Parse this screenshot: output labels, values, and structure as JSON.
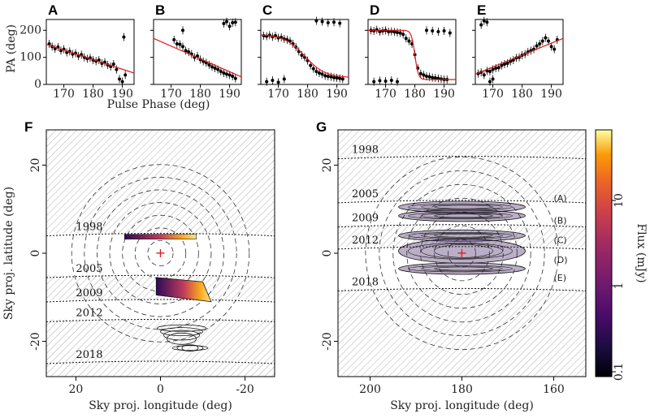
{
  "chart_data": [
    {
      "id": "A",
      "type": "scatter",
      "panel_label": "A",
      "xlim": [
        164,
        194
      ],
      "ylim": [
        0,
        240
      ],
      "xticks": [
        170,
        180,
        190
      ],
      "yticks": [
        0,
        100,
        200
      ],
      "ylabel": "PA (deg)",
      "xlabel": "Pulse Phase (deg)",
      "model": [
        [
          164,
          148
        ],
        [
          194,
          42
        ]
      ],
      "points": [
        [
          165,
          150
        ],
        [
          166,
          140
        ],
        [
          167,
          132
        ],
        [
          168,
          138
        ],
        [
          169,
          125
        ],
        [
          170,
          130
        ],
        [
          171,
          118
        ],
        [
          172,
          122
        ],
        [
          173,
          112
        ],
        [
          174,
          115
        ],
        [
          175,
          105
        ],
        [
          176,
          110
        ],
        [
          177,
          100
        ],
        [
          178,
          95
        ],
        [
          179,
          98
        ],
        [
          180,
          90
        ],
        [
          181,
          86
        ],
        [
          182,
          90
        ],
        [
          183,
          78
        ],
        [
          184,
          82
        ],
        [
          185,
          72
        ],
        [
          186,
          66
        ],
        [
          187,
          75
        ],
        [
          188,
          55
        ],
        [
          189,
          20
        ],
        [
          190,
          10
        ],
        [
          190.5,
          175
        ],
        [
          191,
          35
        ]
      ]
    },
    {
      "id": "B",
      "type": "scatter",
      "panel_label": "B",
      "xlim": [
        164,
        194
      ],
      "ylim": [
        0,
        240
      ],
      "xticks": [
        170,
        180,
        190
      ],
      "yticks": [
        0,
        100,
        200
      ],
      "model": [
        [
          164,
          170
        ],
        [
          194,
          28
        ]
      ],
      "points": [
        [
          171,
          165
        ],
        [
          172,
          150
        ],
        [
          173,
          148
        ],
        [
          174,
          140
        ],
        [
          175,
          125
        ],
        [
          176,
          120
        ],
        [
          177,
          112
        ],
        [
          178,
          100
        ],
        [
          179,
          105
        ],
        [
          180,
          92
        ],
        [
          181,
          85
        ],
        [
          182,
          80
        ],
        [
          183,
          72
        ],
        [
          184,
          65
        ],
        [
          185,
          60
        ],
        [
          186,
          55
        ],
        [
          187,
          48
        ],
        [
          188,
          42
        ],
        [
          189,
          38
        ],
        [
          190,
          35
        ],
        [
          191,
          30
        ],
        [
          192,
          22
        ],
        [
          188,
          225
        ],
        [
          189,
          232
        ],
        [
          190,
          215
        ],
        [
          191,
          228
        ],
        [
          192,
          230
        ],
        [
          174,
          200
        ]
      ]
    },
    {
      "id": "C",
      "type": "scatter",
      "panel_label": "C",
      "xlim": [
        164,
        194
      ],
      "ylim": [
        0,
        240
      ],
      "xticks": [
        170,
        180,
        190
      ],
      "yticks": [
        0,
        100,
        200
      ],
      "model_type": "sigmoid",
      "model_params": {
        "high": 185,
        "low": 25,
        "center": 179,
        "width": 3.5
      },
      "points": [
        [
          165,
          180
        ],
        [
          166,
          178
        ],
        [
          167,
          182
        ],
        [
          168,
          176
        ],
        [
          169,
          180
        ],
        [
          170,
          172
        ],
        [
          171,
          174
        ],
        [
          172,
          168
        ],
        [
          173,
          165
        ],
        [
          174,
          160
        ],
        [
          175,
          150
        ],
        [
          176,
          138
        ],
        [
          177,
          122
        ],
        [
          178,
          108
        ],
        [
          179,
          100
        ],
        [
          180,
          88
        ],
        [
          181,
          70
        ],
        [
          182,
          58
        ],
        [
          183,
          48
        ],
        [
          184,
          42
        ],
        [
          185,
          38
        ],
        [
          186,
          32
        ],
        [
          187,
          30
        ],
        [
          188,
          28
        ],
        [
          189,
          25
        ],
        [
          190,
          24
        ],
        [
          191,
          22
        ],
        [
          192,
          20
        ],
        [
          166,
          10
        ],
        [
          168,
          15
        ],
        [
          170,
          8
        ],
        [
          172,
          20
        ],
        [
          183,
          235
        ],
        [
          185,
          232
        ],
        [
          187,
          228
        ],
        [
          189,
          230
        ],
        [
          191,
          226
        ]
      ]
    },
    {
      "id": "D",
      "type": "scatter",
      "panel_label": "D",
      "xlim": [
        164,
        194
      ],
      "ylim": [
        0,
        240
      ],
      "xticks": [
        170,
        180,
        190
      ],
      "yticks": [
        0,
        100,
        200
      ],
      "model_type": "sigmoid",
      "model_params": {
        "high": 200,
        "low": 18,
        "center": 180,
        "width": 0.6
      },
      "points": [
        [
          165,
          200
        ],
        [
          166,
          198
        ],
        [
          167,
          202
        ],
        [
          168,
          195
        ],
        [
          169,
          198
        ],
        [
          170,
          200
        ],
        [
          171,
          195
        ],
        [
          172,
          196
        ],
        [
          173,
          194
        ],
        [
          174,
          192
        ],
        [
          175,
          190
        ],
        [
          176,
          185
        ],
        [
          177,
          170
        ],
        [
          178,
          160
        ],
        [
          179,
          150
        ],
        [
          180,
          110
        ],
        [
          181,
          60
        ],
        [
          182,
          40
        ],
        [
          183,
          35
        ],
        [
          184,
          30
        ],
        [
          185,
          28
        ],
        [
          186,
          25
        ],
        [
          187,
          24
        ],
        [
          188,
          22
        ],
        [
          189,
          20
        ],
        [
          190,
          18
        ],
        [
          191,
          18
        ],
        [
          166,
          10
        ],
        [
          168,
          14
        ],
        [
          170,
          12
        ],
        [
          172,
          15
        ],
        [
          174,
          10
        ],
        [
          184,
          200
        ],
        [
          186,
          198
        ],
        [
          188,
          195
        ],
        [
          190,
          198
        ],
        [
          192,
          190
        ]
      ]
    },
    {
      "id": "E",
      "type": "scatter",
      "panel_label": "E",
      "xlim": [
        164,
        194
      ],
      "ylim": [
        0,
        240
      ],
      "xticks": [
        170,
        180,
        190
      ],
      "yticks": [
        0,
        100,
        200
      ],
      "model": [
        [
          164,
          38
        ],
        [
          194,
          170
        ]
      ],
      "points": [
        [
          165,
          40
        ],
        [
          166,
          45
        ],
        [
          167,
          35
        ],
        [
          168,
          50
        ],
        [
          169,
          48
        ],
        [
          170,
          55
        ],
        [
          171,
          60
        ],
        [
          172,
          62
        ],
        [
          173,
          70
        ],
        [
          174,
          75
        ],
        [
          175,
          78
        ],
        [
          176,
          85
        ],
        [
          177,
          90
        ],
        [
          178,
          98
        ],
        [
          179,
          100
        ],
        [
          180,
          108
        ],
        [
          181,
          112
        ],
        [
          182,
          120
        ],
        [
          183,
          125
        ],
        [
          184,
          130
        ],
        [
          185,
          142
        ],
        [
          186,
          150
        ],
        [
          187,
          160
        ],
        [
          188,
          172
        ],
        [
          189,
          160
        ],
        [
          190,
          140
        ],
        [
          191,
          130
        ],
        [
          192,
          165
        ],
        [
          166,
          220
        ],
        [
          167,
          235
        ],
        [
          168,
          230
        ],
        [
          169,
          10
        ],
        [
          170,
          20
        ]
      ]
    },
    {
      "id": "F",
      "type": "heatmap",
      "panel_label": "F",
      "xlim": [
        27,
        -27
      ],
      "ylim": [
        -28,
        28
      ],
      "xticks": [
        20,
        0,
        -20
      ],
      "yticks": [
        -20,
        0,
        20
      ],
      "xlabel": "Sky proj. longitude (deg)",
      "ylabel": "Sky proj. latitude (deg)",
      "center": [
        0,
        0
      ],
      "circle_radii": [
        3,
        6,
        9,
        12,
        15,
        18,
        21
      ],
      "years": [
        {
          "year": "1998",
          "lat": 4.5,
          "label_x": 20
        },
        {
          "year": "2005",
          "lat": -5,
          "label_x": 20
        },
        {
          "year": "2009",
          "lat": -10.5,
          "label_x": 20
        },
        {
          "year": "2012",
          "lat": -15,
          "label_x": 20
        },
        {
          "year": "2018",
          "lat": -24.5,
          "label_x": 20
        }
      ]
    },
    {
      "id": "G",
      "type": "heatmap",
      "panel_label": "G",
      "xlim": [
        207,
        153
      ],
      "ylim": [
        -28,
        28
      ],
      "xticks": [
        200,
        180,
        160
      ],
      "yticks": [
        -20,
        0,
        20
      ],
      "xlabel": "Sky proj. longitude (deg)",
      "center": [
        180,
        0
      ],
      "circle_radii": [
        3,
        6,
        9,
        12,
        15,
        18,
        21
      ],
      "years": [
        {
          "year": "1998",
          "lat": 22,
          "label_x": 204
        },
        {
          "year": "2005",
          "lat": 12,
          "label_x": 204
        },
        {
          "year": "2009",
          "lat": 6.5,
          "label_x": 204
        },
        {
          "year": "2012",
          "lat": 1.5,
          "label_x": 204
        },
        {
          "year": "2018",
          "lat": -8,
          "label_x": 204
        }
      ],
      "components": [
        "(A)",
        "(B)",
        "(C)",
        "(D)",
        "(E)"
      ]
    },
    {
      "id": "colorbar",
      "type": "heatmap",
      "label": "Flux (mJy)",
      "scale": "log",
      "ticks": [
        "10",
        "1",
        "0.1"
      ],
      "colors": [
        "#000004",
        "#2b0a56",
        "#6d1e7a",
        "#a8327d",
        "#d94e61",
        "#f3793e",
        "#fca50a",
        "#fbe45b",
        "#fcffa4"
      ]
    }
  ]
}
